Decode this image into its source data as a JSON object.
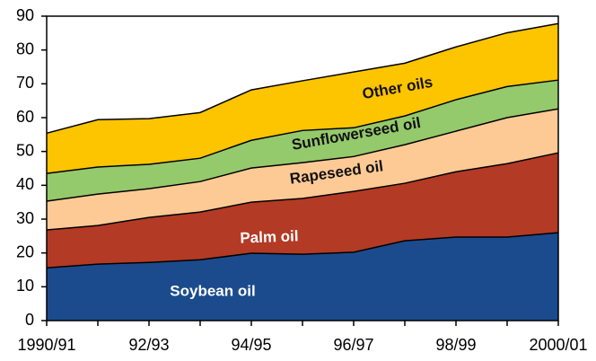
{
  "chart_data": {
    "type": "stacked_area",
    "categories": [
      "1990/91",
      null,
      "92/93",
      null,
      "94/95",
      null,
      "96/97",
      null,
      "98/99",
      null,
      "2000/01"
    ],
    "series": [
      {
        "name": "Soybean oil",
        "color": "#1b4b8c",
        "values": [
          15.6,
          16.7,
          17.2,
          18.0,
          19.9,
          19.6,
          20.2,
          23.6,
          24.7,
          24.7,
          26.0
        ]
      },
      {
        "name": "Palm oil",
        "color": "#b33a25",
        "values": [
          11.2,
          11.4,
          13.3,
          14.1,
          15.1,
          16.5,
          18.0,
          17.0,
          19.3,
          21.7,
          23.6
        ]
      },
      {
        "name": "Rapeseed oil",
        "color": "#fdca95",
        "values": [
          8.5,
          9.3,
          8.5,
          9.0,
          10.1,
          10.6,
          10.3,
          11.4,
          12.0,
          13.6,
          13.0
        ]
      },
      {
        "name": "Sunflowerseed oil",
        "color": "#94c96c",
        "values": [
          8.2,
          8.0,
          7.2,
          6.9,
          8.2,
          9.5,
          8.5,
          8.5,
          9.3,
          9.2,
          8.5
        ]
      },
      {
        "name": "Other oils",
        "color": "#fdc400",
        "values": [
          11.9,
          14.0,
          13.5,
          13.5,
          14.9,
          14.7,
          16.5,
          15.6,
          15.6,
          15.9,
          16.7
        ]
      }
    ],
    "ylim": [
      0,
      90
    ],
    "yticks": [
      0,
      10,
      20,
      30,
      40,
      50,
      60,
      70,
      80,
      90
    ]
  }
}
